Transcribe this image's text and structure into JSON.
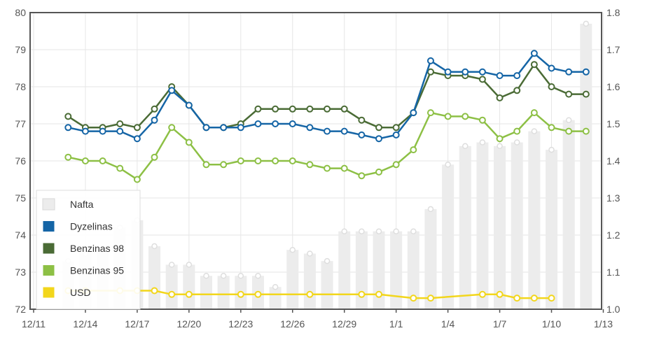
{
  "chart_data": {
    "type": "line",
    "x_start": "12/11",
    "x_ticks": [
      "12/11",
      "12/14",
      "12/17",
      "12/20",
      "12/23",
      "12/26",
      "12/29",
      "1/1",
      "1/4",
      "1/7",
      "1/10",
      "1/13"
    ],
    "left_axis": {
      "ylim": [
        72,
        80
      ],
      "ticks": [
        "72",
        "73",
        "74",
        "75",
        "76",
        "77",
        "78",
        "79",
        "80"
      ]
    },
    "right_axis": {
      "ylim": [
        1.0,
        1.8
      ],
      "ticks": [
        "1.0",
        "1.1",
        "1.2",
        "1.3",
        "1.4",
        "1.5",
        "1.6",
        "1.7",
        "1.8"
      ]
    },
    "grid": true,
    "legend_position": "bottom-left",
    "bars": {
      "name": "Nafta",
      "axis": "right",
      "color": "#ececec",
      "points": [
        [
          "12/13",
          1.13
        ],
        [
          "12/14",
          1.15
        ],
        [
          "12/15",
          1.16
        ],
        [
          "12/16",
          1.22
        ],
        [
          "12/17",
          1.24
        ],
        [
          "12/18",
          1.17
        ],
        [
          "12/19",
          1.12
        ],
        [
          "12/20",
          1.12
        ],
        [
          "12/21",
          1.09
        ],
        [
          "12/22",
          1.09
        ],
        [
          "12/23",
          1.09
        ],
        [
          "12/24",
          1.09
        ],
        [
          "12/25",
          1.06
        ],
        [
          "12/26",
          1.16
        ],
        [
          "12/27",
          1.15
        ],
        [
          "12/28",
          1.13
        ],
        [
          "12/29",
          1.21
        ],
        [
          "12/30",
          1.21
        ],
        [
          "12/31",
          1.21
        ],
        [
          "1/1",
          1.21
        ],
        [
          "1/2",
          1.21
        ],
        [
          "1/3",
          1.27
        ],
        [
          "1/4",
          1.39
        ],
        [
          "1/5",
          1.44
        ],
        [
          "1/6",
          1.45
        ],
        [
          "1/7",
          1.44
        ],
        [
          "1/8",
          1.45
        ],
        [
          "1/9",
          1.48
        ],
        [
          "1/10",
          1.43
        ],
        [
          "1/11",
          1.51
        ],
        [
          "1/12",
          1.77
        ]
      ]
    },
    "series": [
      {
        "name": "Dyzelinas",
        "axis": "left",
        "color": "#1565a6",
        "points": [
          [
            "12/13",
            76.9
          ],
          [
            "12/14",
            76.8
          ],
          [
            "12/15",
            76.8
          ],
          [
            "12/16",
            76.8
          ],
          [
            "12/17",
            76.6
          ],
          [
            "12/18",
            77.1
          ],
          [
            "12/19",
            77.9
          ],
          [
            "12/20",
            77.5
          ],
          [
            "12/21",
            76.9
          ],
          [
            "12/22",
            76.9
          ],
          [
            "12/23",
            76.9
          ],
          [
            "12/24",
            77.0
          ],
          [
            "12/25",
            77.0
          ],
          [
            "12/26",
            77.0
          ],
          [
            "12/27",
            76.9
          ],
          [
            "12/28",
            76.8
          ],
          [
            "12/29",
            76.8
          ],
          [
            "12/30",
            76.7
          ],
          [
            "12/31",
            76.6
          ],
          [
            "1/1",
            76.7
          ],
          [
            "1/2",
            77.3
          ],
          [
            "1/3",
            78.7
          ],
          [
            "1/4",
            78.4
          ],
          [
            "1/5",
            78.4
          ],
          [
            "1/6",
            78.4
          ],
          [
            "1/7",
            78.3
          ],
          [
            "1/8",
            78.3
          ],
          [
            "1/9",
            78.9
          ],
          [
            "1/10",
            78.5
          ],
          [
            "1/11",
            78.4
          ],
          [
            "1/12",
            78.4
          ]
        ]
      },
      {
        "name": "Benzinas 98",
        "axis": "left",
        "color": "#4a6b35",
        "points": [
          [
            "12/13",
            77.2
          ],
          [
            "12/14",
            76.9
          ],
          [
            "12/15",
            76.9
          ],
          [
            "12/16",
            77.0
          ],
          [
            "12/17",
            76.9
          ],
          [
            "12/18",
            77.4
          ],
          [
            "12/19",
            78.0
          ],
          [
            "12/20",
            77.5
          ],
          [
            "12/21",
            76.9
          ],
          [
            "12/22",
            76.9
          ],
          [
            "12/23",
            77.0
          ],
          [
            "12/24",
            77.4
          ],
          [
            "12/25",
            77.4
          ],
          [
            "12/26",
            77.4
          ],
          [
            "12/27",
            77.4
          ],
          [
            "12/28",
            77.4
          ],
          [
            "12/29",
            77.4
          ],
          [
            "12/30",
            77.1
          ],
          [
            "12/31",
            76.9
          ],
          [
            "1/1",
            76.9
          ],
          [
            "1/2",
            77.3
          ],
          [
            "1/3",
            78.4
          ],
          [
            "1/4",
            78.3
          ],
          [
            "1/5",
            78.3
          ],
          [
            "1/6",
            78.2
          ],
          [
            "1/7",
            77.7
          ],
          [
            "1/8",
            77.9
          ],
          [
            "1/9",
            78.6
          ],
          [
            "1/10",
            78.0
          ],
          [
            "1/11",
            77.8
          ],
          [
            "1/12",
            77.8
          ]
        ]
      },
      {
        "name": "Benzinas 95",
        "axis": "left",
        "color": "#8dc045",
        "points": [
          [
            "12/13",
            76.1
          ],
          [
            "12/14",
            76.0
          ],
          [
            "12/15",
            76.0
          ],
          [
            "12/16",
            75.8
          ],
          [
            "12/17",
            75.5
          ],
          [
            "12/18",
            76.1
          ],
          [
            "12/19",
            76.9
          ],
          [
            "12/20",
            76.5
          ],
          [
            "12/21",
            75.9
          ],
          [
            "12/22",
            75.9
          ],
          [
            "12/23",
            76.0
          ],
          [
            "12/24",
            76.0
          ],
          [
            "12/25",
            76.0
          ],
          [
            "12/26",
            76.0
          ],
          [
            "12/27",
            75.9
          ],
          [
            "12/28",
            75.8
          ],
          [
            "12/29",
            75.8
          ],
          [
            "12/30",
            75.6
          ],
          [
            "12/31",
            75.7
          ],
          [
            "1/1",
            75.9
          ],
          [
            "1/2",
            76.3
          ],
          [
            "1/3",
            77.3
          ],
          [
            "1/4",
            77.2
          ],
          [
            "1/5",
            77.2
          ],
          [
            "1/6",
            77.1
          ],
          [
            "1/7",
            76.6
          ],
          [
            "1/8",
            76.8
          ],
          [
            "1/9",
            77.3
          ],
          [
            "1/10",
            76.9
          ],
          [
            "1/11",
            76.8
          ],
          [
            "1/12",
            76.8
          ]
        ]
      },
      {
        "name": "USD",
        "axis": "right",
        "color": "#f2d61c",
        "points": [
          [
            "12/13",
            1.05
          ],
          [
            "12/14",
            1.05
          ],
          [
            "12/16",
            1.05
          ],
          [
            "12/17",
            1.05
          ],
          [
            "12/18",
            1.05
          ],
          [
            "12/19",
            1.04
          ],
          [
            "12/20",
            1.04
          ],
          [
            "12/23",
            1.04
          ],
          [
            "12/24",
            1.04
          ],
          [
            "12/27",
            1.04
          ],
          [
            "12/30",
            1.04
          ],
          [
            "12/31",
            1.04
          ],
          [
            "1/2",
            1.03
          ],
          [
            "1/3",
            1.03
          ],
          [
            "1/6",
            1.04
          ],
          [
            "1/7",
            1.04
          ],
          [
            "1/8",
            1.03
          ],
          [
            "1/9",
            1.03
          ],
          [
            "1/10",
            1.03
          ]
        ]
      }
    ]
  }
}
